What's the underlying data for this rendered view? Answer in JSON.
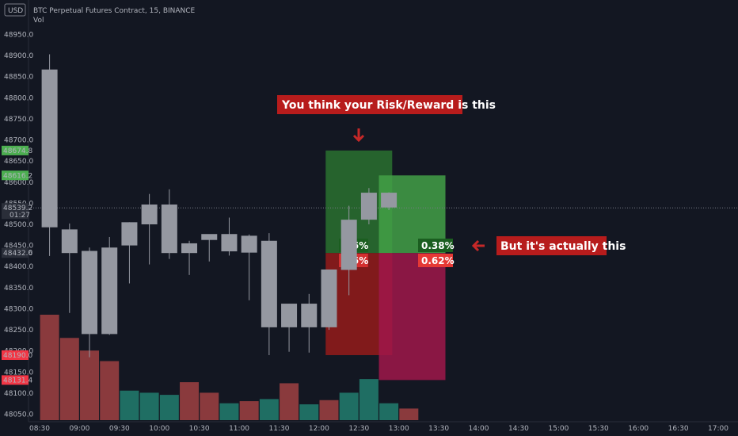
{
  "header": {
    "currency_badge": "USD",
    "symbol_title": "BTC Perpetual Futures Contract, 15, BINANCE",
    "volume_label": "Vol"
  },
  "colors": {
    "background": "#131722",
    "candle": "#9598a1",
    "volume_up": "#1f6e63",
    "volume_down": "#8a3a3d",
    "badge_green": "#4caf50",
    "badge_red": "#f23645",
    "annotation_bg": "#b71c1c",
    "arrow": "#c62828",
    "box_green_dark": "#2e7d32",
    "box_green_light": "#43a047",
    "box_red_dark": "#8e1b1b",
    "box_red_magenta": "#a0174a"
  },
  "annotations": {
    "top_text": "You think your Risk/Reward is this",
    "side_text": "But it's actually this"
  },
  "chart_data": {
    "type": "candlestick",
    "title": "BTC Perpetual Futures Contract, 15, BINANCE",
    "ylim": [
      48030,
      48980
    ],
    "y_ticks": [
      "48950.0",
      "48900.0",
      "48850.0",
      "48800.0",
      "48750.0",
      "48700.0",
      "48650.0",
      "48600.0",
      "48550.0",
      "48500.0",
      "48450.0",
      "48400.0",
      "48350.0",
      "48300.0",
      "48250.0",
      "48200.0",
      "48150.0",
      "48100.0",
      "48050.0"
    ],
    "x_ticks": [
      "08:30",
      "09:00",
      "09:30",
      "10:00",
      "10:30",
      "11:00",
      "11:30",
      "12:00",
      "12:30",
      "13:00",
      "13:30",
      "14:00",
      "14:30",
      "15:00",
      "15:30",
      "16:00",
      "16:30",
      "17:00"
    ],
    "x_tick_times": [
      510,
      540,
      570,
      600,
      630,
      660,
      690,
      720,
      750,
      780,
      810,
      840,
      870,
      900,
      930,
      960,
      990,
      1020
    ],
    "candles": [
      {
        "t": "08:30",
        "tm": 517.5,
        "o": 48867,
        "h": 48903,
        "l": 48425,
        "c": 48493
      },
      {
        "t": "08:45",
        "tm": 532.5,
        "o": 48488,
        "h": 48502,
        "l": 48290,
        "c": 48432
      },
      {
        "t": "09:00",
        "tm": 547.5,
        "o": 48437,
        "h": 48445,
        "l": 48185,
        "c": 48240
      },
      {
        "t": "09:15",
        "tm": 562.5,
        "o": 48240,
        "h": 48470,
        "l": 48238,
        "c": 48445
      },
      {
        "t": "09:30",
        "tm": 577.5,
        "o": 48450,
        "h": 48505,
        "l": 48360,
        "c": 48505
      },
      {
        "t": "09:45",
        "tm": 592.5,
        "o": 48500,
        "h": 48572,
        "l": 48405,
        "c": 48547
      },
      {
        "t": "10:00",
        "tm": 607.5,
        "o": 48547,
        "h": 48583,
        "l": 48418,
        "c": 48432
      },
      {
        "t": "10:15",
        "tm": 622.5,
        "o": 48432,
        "h": 48461,
        "l": 48380,
        "c": 48455
      },
      {
        "t": "10:30",
        "tm": 637.5,
        "o": 48463,
        "h": 48474,
        "l": 48412,
        "c": 48477
      },
      {
        "t": "10:45",
        "tm": 652.5,
        "o": 48477,
        "h": 48516,
        "l": 48426,
        "c": 48436
      },
      {
        "t": "11:00",
        "tm": 667.5,
        "o": 48433,
        "h": 48476,
        "l": 48320,
        "c": 48473
      },
      {
        "t": "11:15",
        "tm": 682.5,
        "o": 48461,
        "h": 48479,
        "l": 48190,
        "c": 48256
      },
      {
        "t": "11:30",
        "tm": 697.5,
        "o": 48256,
        "h": 48312,
        "l": 48198,
        "c": 48312
      },
      {
        "t": "11:45",
        "tm": 712.5,
        "o": 48256,
        "h": 48335,
        "l": 48196,
        "c": 48312
      },
      {
        "t": "12:00",
        "tm": 727.5,
        "o": 48256,
        "h": 48392,
        "l": 48250,
        "c": 48393
      },
      {
        "t": "12:15",
        "tm": 742.5,
        "o": 48392,
        "h": 48544,
        "l": 48332,
        "c": 48511
      },
      {
        "t": "12:30",
        "tm": 757.5,
        "o": 48511,
        "h": 48586,
        "l": 48500,
        "c": 48575
      },
      {
        "t": "12:45",
        "tm": 772.5,
        "o": 48540,
        "h": 48576,
        "l": 48534,
        "c": 48575
      }
    ],
    "volume": [
      {
        "t": "08:30",
        "v": 100,
        "dir": "down"
      },
      {
        "t": "08:45",
        "v": 78,
        "dir": "down"
      },
      {
        "t": "09:00",
        "v": 66,
        "dir": "down"
      },
      {
        "t": "09:15",
        "v": 56,
        "dir": "down"
      },
      {
        "t": "09:30",
        "v": 28,
        "dir": "up"
      },
      {
        "t": "09:45",
        "v": 26,
        "dir": "up"
      },
      {
        "t": "10:00",
        "v": 24,
        "dir": "up"
      },
      {
        "t": "10:15",
        "v": 36,
        "dir": "down"
      },
      {
        "t": "10:30",
        "v": 26,
        "dir": "down"
      },
      {
        "t": "10:45",
        "v": 16,
        "dir": "up"
      },
      {
        "t": "11:00",
        "v": 18,
        "dir": "down"
      },
      {
        "t": "11:15",
        "v": 20,
        "dir": "up"
      },
      {
        "t": "11:30",
        "v": 35,
        "dir": "down"
      },
      {
        "t": "11:45",
        "v": 15,
        "dir": "up"
      },
      {
        "t": "12:00",
        "v": 19,
        "dir": "down"
      },
      {
        "t": "12:15",
        "v": 26,
        "dir": "up"
      },
      {
        "t": "12:30",
        "v": 39,
        "dir": "up"
      },
      {
        "t": "12:45",
        "v": 16,
        "dir": "up"
      },
      {
        "t": "13:00",
        "v": 11,
        "dir": "down"
      }
    ],
    "price_badges": [
      {
        "label": "48674.8",
        "price": 48675,
        "color": "#4caf50"
      },
      {
        "label": "48616.2",
        "price": 48616,
        "color": "#4caf50"
      },
      {
        "label": "48539.2",
        "price": 48539,
        "color": "#2a2e39",
        "sublabel": "01:27"
      },
      {
        "label": "48433.0",
        "price": 48433,
        "color": "#2a2e39"
      },
      {
        "label": "48432.6",
        "price": 48432,
        "color": "#2a2e39"
      },
      {
        "label": "48190.0",
        "price": 48190,
        "color": "#f23645"
      },
      {
        "label": "48131.4",
        "price": 48131,
        "color": "#f23645"
      }
    ],
    "current_price_line": 48539,
    "positions": [
      {
        "name": "expected",
        "t0": 725,
        "t1": 775,
        "entry": 48432,
        "target": 48675,
        "stop": 48190,
        "target_label": "0.5%",
        "stop_label": "0.5%"
      },
      {
        "name": "actual",
        "t0": 765,
        "t1": 815,
        "entry": 48432,
        "target": 48616,
        "stop": 48131,
        "target_label": "0.38%",
        "stop_label": "0.62%"
      }
    ]
  }
}
